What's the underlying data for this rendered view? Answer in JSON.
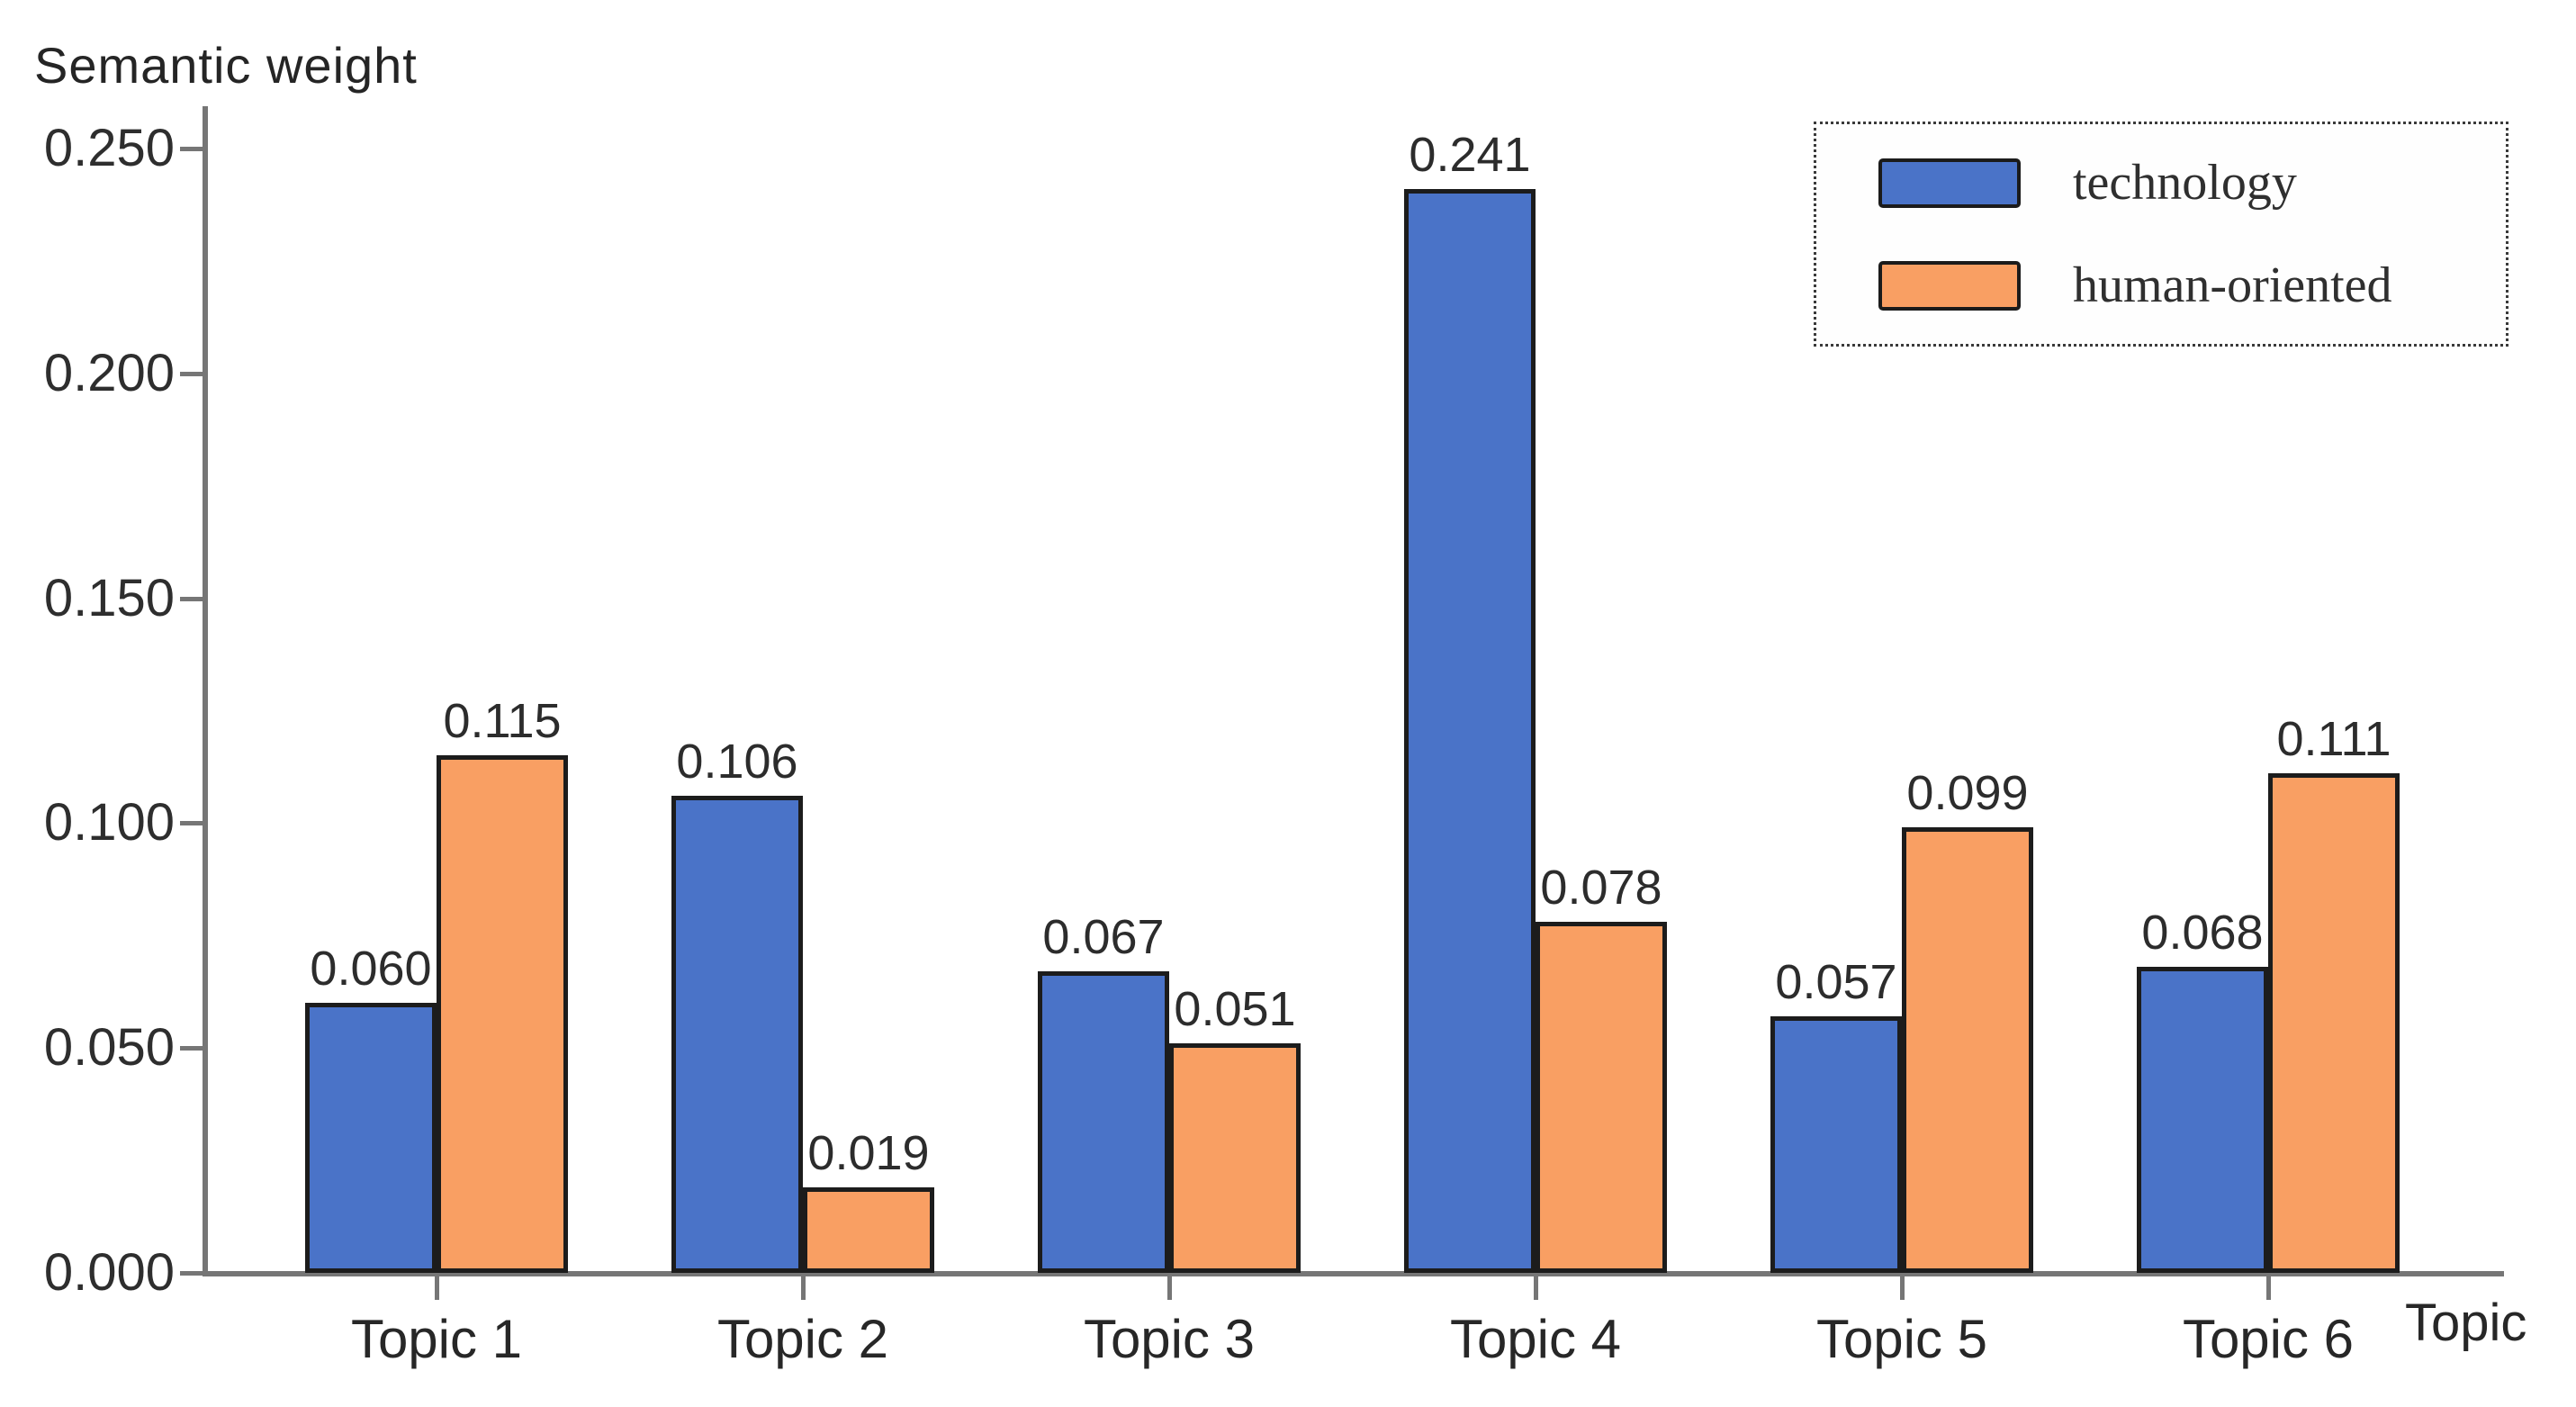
{
  "chart_data": {
    "type": "bar",
    "title": "",
    "ylabel": "Semantic weight",
    "xlabel": "Topic",
    "ylim": [
      0,
      0.25
    ],
    "ytick_step": 0.05,
    "ytick_labels": [
      "0.000",
      "0.050",
      "0.100",
      "0.150",
      "0.200",
      "0.250"
    ],
    "categories": [
      "Topic 1",
      "Topic 2",
      "Topic 3",
      "Topic 4",
      "Topic 5",
      "Topic 6"
    ],
    "series": [
      {
        "name": "technology",
        "color": "#4a73c8",
        "values": [
          0.06,
          0.106,
          0.067,
          0.241,
          0.057,
          0.068
        ],
        "labels": [
          "0.060",
          "0.106",
          "0.067",
          "0.241",
          "0.057",
          "0.068"
        ]
      },
      {
        "name": "human-oriented",
        "color": "#f99f63",
        "values": [
          0.115,
          0.019,
          0.051,
          0.078,
          0.099,
          0.111
        ],
        "labels": [
          "0.115",
          "0.019",
          "0.051",
          "0.078",
          "0.099",
          "0.111"
        ]
      }
    ],
    "legend_position": "top-right",
    "grid": false
  },
  "colors": {
    "bar_outline": "#1c1c1c",
    "axis": "#767676",
    "text": "#2b2b2b",
    "background": "#ffffff"
  }
}
